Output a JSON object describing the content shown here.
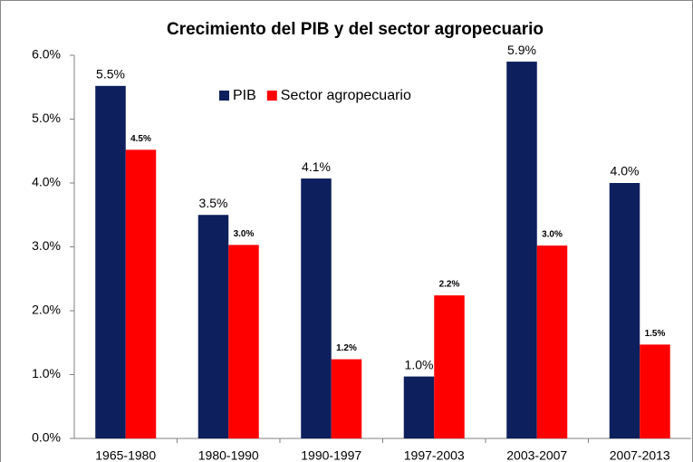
{
  "chart_data": {
    "type": "bar",
    "title": "Crecimiento del PIB y del sector agropecuario",
    "categories": [
      "1965-1980",
      "1980-1990",
      "1990-1997",
      "1997-2003",
      "2003-2007",
      "2007-2013"
    ],
    "series": [
      {
        "name": "PIB",
        "color": "#0d1f5c",
        "values": [
          5.52,
          3.5,
          4.07,
          0.97,
          5.9,
          4.0
        ],
        "value_labels": [
          "5.5%",
          "3.5%",
          "4.1%",
          "1.0%",
          "5.9%",
          "4.0%"
        ]
      },
      {
        "name": "Sector agropecuario",
        "color": "#ff0000",
        "values": [
          4.52,
          3.03,
          1.24,
          2.24,
          3.02,
          1.47
        ],
        "value_labels": [
          "4.5%",
          "3.0%",
          "1.2%",
          "2.2%",
          "3.0%",
          "1.5%"
        ]
      }
    ],
    "ylim": [
      0,
      6
    ],
    "yticks": [
      {
        "value": 0,
        "label": "0.0%"
      },
      {
        "value": 1,
        "label": "1.0%"
      },
      {
        "value": 2,
        "label": "2.0%"
      },
      {
        "value": 3,
        "label": "3.0%"
      },
      {
        "value": 4,
        "label": "4.0%"
      },
      {
        "value": 5,
        "label": "5.0%"
      },
      {
        "value": 6,
        "label": "6.0%"
      }
    ],
    "grid": false,
    "legend": "top"
  }
}
